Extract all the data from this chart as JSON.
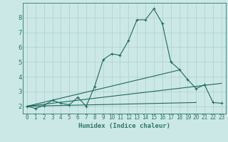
{
  "xlabel": "Humidex (Indice chaleur)",
  "bg_color": "#cce8e6",
  "grid_color": "#aacfcd",
  "line_color": "#1a6b5e",
  "axis_color": "#2a7a6a",
  "tick_color": "#2a7a6a",
  "xlim": [
    -0.5,
    23.5
  ],
  "ylim": [
    1.5,
    9.0
  ],
  "xticks": [
    0,
    1,
    2,
    3,
    4,
    5,
    6,
    7,
    8,
    9,
    10,
    11,
    12,
    13,
    14,
    15,
    16,
    17,
    18,
    19,
    20,
    21,
    22,
    23
  ],
  "yticks": [
    2,
    3,
    4,
    5,
    6,
    7,
    8
  ],
  "line1_x": [
    0,
    1,
    2,
    3,
    4,
    5,
    6,
    7,
    8,
    9,
    10,
    11,
    12,
    13,
    14,
    15,
    16,
    17,
    18,
    19,
    20,
    21,
    22,
    23
  ],
  "line1_y": [
    2.0,
    1.85,
    2.05,
    2.4,
    2.2,
    2.1,
    2.6,
    2.0,
    3.35,
    5.15,
    5.55,
    5.45,
    6.45,
    7.85,
    7.85,
    8.6,
    7.6,
    5.0,
    4.5,
    3.8,
    3.2,
    3.45,
    2.25,
    2.2
  ],
  "line2_x": [
    0,
    20
  ],
  "line2_y": [
    2.0,
    2.25
  ],
  "line3_x": [
    0,
    23
  ],
  "line3_y": [
    2.0,
    3.55
  ],
  "line4_x": [
    0,
    18
  ],
  "line4_y": [
    2.0,
    4.45
  ],
  "xlabel_fontsize": 6.5,
  "tick_fontsize": 5.5,
  "ytick_fontsize": 6.5
}
